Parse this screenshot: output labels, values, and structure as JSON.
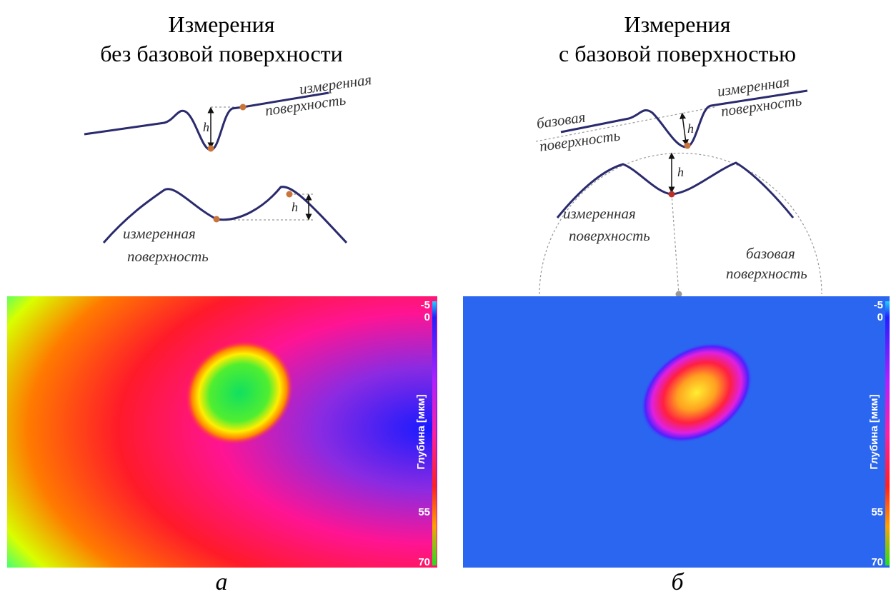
{
  "panels": [
    {
      "title": [
        "Измерения",
        "без базовой поверхности"
      ],
      "labels": [
        "измеренная",
        "поверхность",
        "h",
        "h",
        "измеренная",
        "поверхность"
      ],
      "colorbar": {
        "ticks": [
          "-5",
          "0",
          "55",
          "70"
        ],
        "label": "Глубина [мкм]"
      },
      "caption": "а"
    },
    {
      "title": [
        "Измерения",
        "с базовой поверхностью"
      ],
      "labels": [
        "базовая",
        "поверхность",
        "измеренная",
        "поверхность",
        "h",
        "h",
        "измеренная",
        "поверхность",
        "базовая",
        "поверхность"
      ],
      "colorbar": {
        "ticks": [
          "-5",
          "0",
          "55",
          "70"
        ],
        "label": "Глубина [мкм]"
      },
      "caption": "б"
    }
  ]
}
